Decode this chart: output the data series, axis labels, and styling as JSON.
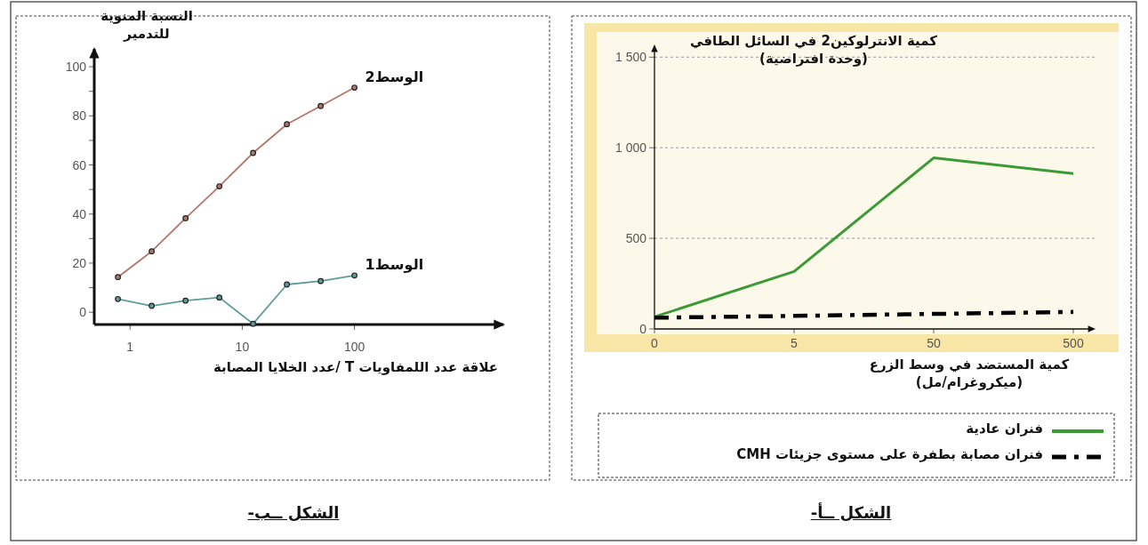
{
  "chart_data": [
    {
      "type": "line",
      "title": "الشكل ــأ-",
      "ylabel": "كمية الانترلوكين2 في السائل الطافي (وحدة افتراضية)",
      "xlabel": "كمية المستضد في وسط الزرع (ميكروغرام/مل)",
      "categories": [
        "0",
        "5",
        "50",
        "500"
      ],
      "ylim": [
        0,
        1570
      ],
      "yticks": [
        0,
        500,
        {
          "value": 1000,
          "label": "1 000"
        },
        {
          "value": 1500,
          "label": "1 500"
        }
      ],
      "grid": "y",
      "legend": "bottom",
      "series": [
        {
          "name": "فنران عادية",
          "color": "#3c9a35",
          "values": [
            67,
            317,
            944,
            857
          ],
          "line_style": "solid"
        },
        {
          "name": "فنران مصابة بطفرة على مستوى جزيئات CMH",
          "color": "#000000",
          "values": [
            62,
            72,
            83,
            94
          ],
          "line_style": "dashdot"
        }
      ]
    },
    {
      "type": "line",
      "title": "الشكل ــب-",
      "ylabel": "النسبة المنوية للتدمير",
      "xlabel": "علاقة عدد اللمفاويات T /عدد الخلايا المصابة",
      "x": [
        0.78,
        1.56,
        3.125,
        6.25,
        12.5,
        25,
        50,
        100
      ],
      "log": "x",
      "xlim": [
        0.48,
        2200
      ],
      "xticks": [
        1,
        10,
        100
      ],
      "ylim": [
        -5,
        108
      ],
      "yticks": [
        0,
        {
          "value": 10,
          "label": null
        },
        20,
        {
          "value": 30,
          "label": null
        },
        40,
        {
          "value": 50,
          "label": null
        },
        60,
        {
          "value": 70,
          "label": null
        },
        80,
        {
          "value": 90,
          "label": null
        },
        100
      ],
      "marker": "circle",
      "legend": false,
      "series": [
        {
          "name": "الوسط2",
          "color": "#b5756a",
          "values": [
            14.3,
            24.8,
            38.3,
            51.3,
            64.9,
            76.6,
            84,
            91.5
          ]
        },
        {
          "name": "الوسط1",
          "color": "#5f9c9c",
          "values": [
            5.4,
            2.6,
            4.7,
            6,
            -4.7,
            11.3,
            12.7,
            15
          ]
        }
      ]
    }
  ]
}
